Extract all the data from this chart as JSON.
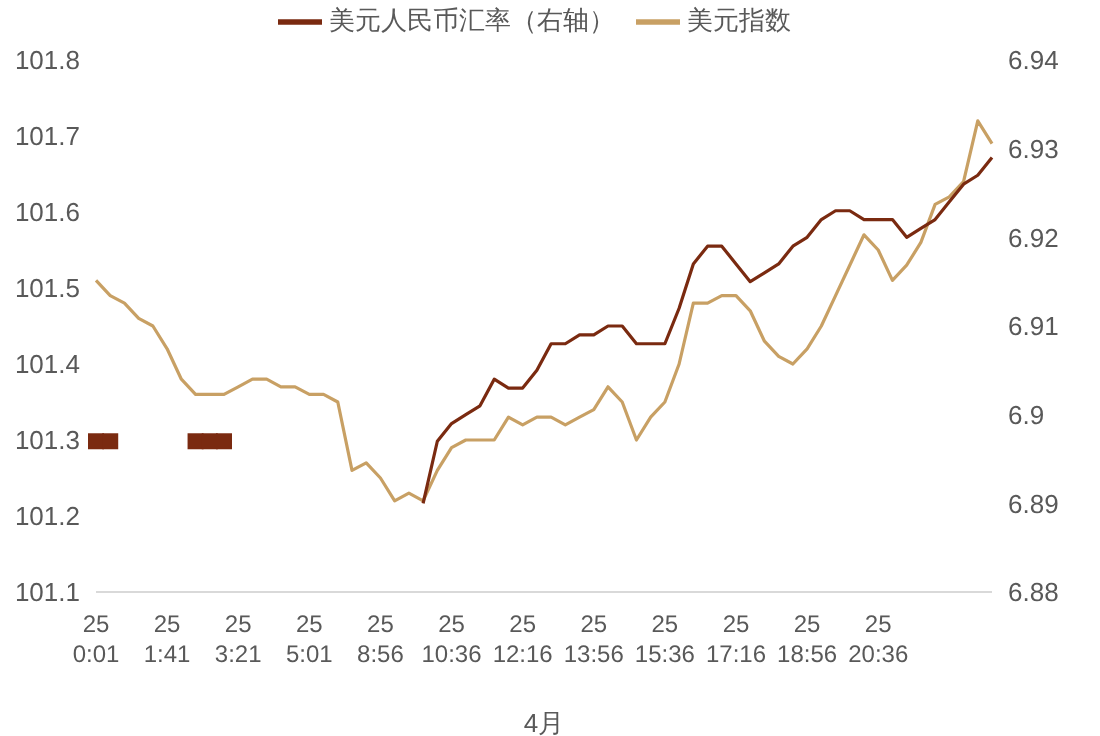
{
  "chart_data": {
    "type": "line",
    "xlabel": "4月",
    "categories": [
      "25\n0:01",
      null,
      null,
      null,
      null,
      "25\n1:41",
      null,
      null,
      null,
      null,
      "25\n3:21",
      null,
      null,
      null,
      null,
      "25\n5:01",
      null,
      null,
      null,
      null,
      "25\n8:56",
      null,
      null,
      null,
      null,
      "25\n10:36",
      null,
      null,
      null,
      null,
      "25\n12:16",
      null,
      null,
      null,
      null,
      "25\n13:56",
      null,
      null,
      null,
      null,
      "25\n15:36",
      null,
      null,
      null,
      null,
      "25\n17:16",
      null,
      null,
      null,
      null,
      "25\n18:56",
      null,
      null,
      null,
      null,
      "25\n20:36",
      null,
      null,
      null,
      null,
      null,
      null,
      null,
      null
    ],
    "series": [
      {
        "name": "美元指数",
        "color": "#c8a064",
        "values": [
          101.51,
          101.49,
          101.48,
          101.46,
          101.45,
          101.42,
          101.38,
          101.36,
          101.36,
          101.36,
          101.37,
          101.38,
          101.38,
          101.37,
          101.37,
          101.36,
          101.36,
          101.35,
          101.26,
          101.27,
          101.25,
          101.22,
          101.23,
          101.22,
          101.26,
          101.29,
          101.3,
          101.3,
          101.3,
          101.33,
          101.32,
          101.33,
          101.33,
          101.32,
          101.33,
          101.34,
          101.37,
          101.35,
          101.3,
          101.33,
          101.35,
          101.4,
          101.48,
          101.48,
          101.49,
          101.49,
          101.47,
          101.43,
          101.41,
          101.4,
          101.42,
          101.45,
          101.49,
          101.53,
          101.57,
          101.55,
          101.51,
          101.53,
          101.56,
          101.61,
          101.62,
          101.64,
          101.72,
          101.69
        ]
      },
      {
        "type": "scatter",
        "color": "#7a2a10",
        "axis": "y2",
        "marker": "square",
        "values": [
          6.897,
          6.897,
          null,
          null,
          null,
          null,
          null,
          6.897,
          6.897,
          6.897,
          null,
          null,
          null,
          null,
          null,
          null,
          null,
          null,
          null,
          null,
          null,
          null,
          null,
          null,
          null,
          null,
          null,
          null,
          null,
          null,
          null,
          null,
          null,
          null,
          null,
          null,
          null,
          null,
          null,
          null,
          null,
          null,
          null,
          null,
          null,
          null,
          null,
          null,
          null,
          null,
          null,
          null,
          null,
          null,
          null,
          null,
          null,
          null,
          null,
          null,
          null,
          null,
          null,
          null
        ]
      },
      {
        "name": "美元人民币汇率（右轴）",
        "color": "#7a2a10",
        "axis": "y2",
        "values": [
          null,
          null,
          null,
          null,
          null,
          null,
          null,
          null,
          null,
          null,
          null,
          null,
          null,
          null,
          null,
          null,
          null,
          null,
          null,
          null,
          null,
          null,
          null,
          6.89,
          6.897,
          6.899,
          6.9,
          6.901,
          6.904,
          6.903,
          6.903,
          6.905,
          6.908,
          6.908,
          6.909,
          6.909,
          6.91,
          6.91,
          6.908,
          6.908,
          6.908,
          6.912,
          6.917,
          6.919,
          6.919,
          6.917,
          6.915,
          6.916,
          6.917,
          6.919,
          6.92,
          6.922,
          6.923,
          6.923,
          6.922,
          6.922,
          6.922,
          6.92,
          6.921,
          6.922,
          6.924,
          6.926,
          6.927,
          6.929
        ]
      }
    ],
    "ylim": [
      101.1,
      101.8
    ],
    "yticks": [
      101.1,
      101.2,
      101.3,
      101.4,
      101.5,
      101.6,
      101.7,
      101.8
    ],
    "y2lim": [
      6.88,
      6.94
    ],
    "y2ticks": [
      6.88,
      6.89,
      6.9,
      6.91,
      6.92,
      6.93,
      6.94
    ],
    "legend": "top",
    "marker": "none",
    "line_style": "solid"
  }
}
